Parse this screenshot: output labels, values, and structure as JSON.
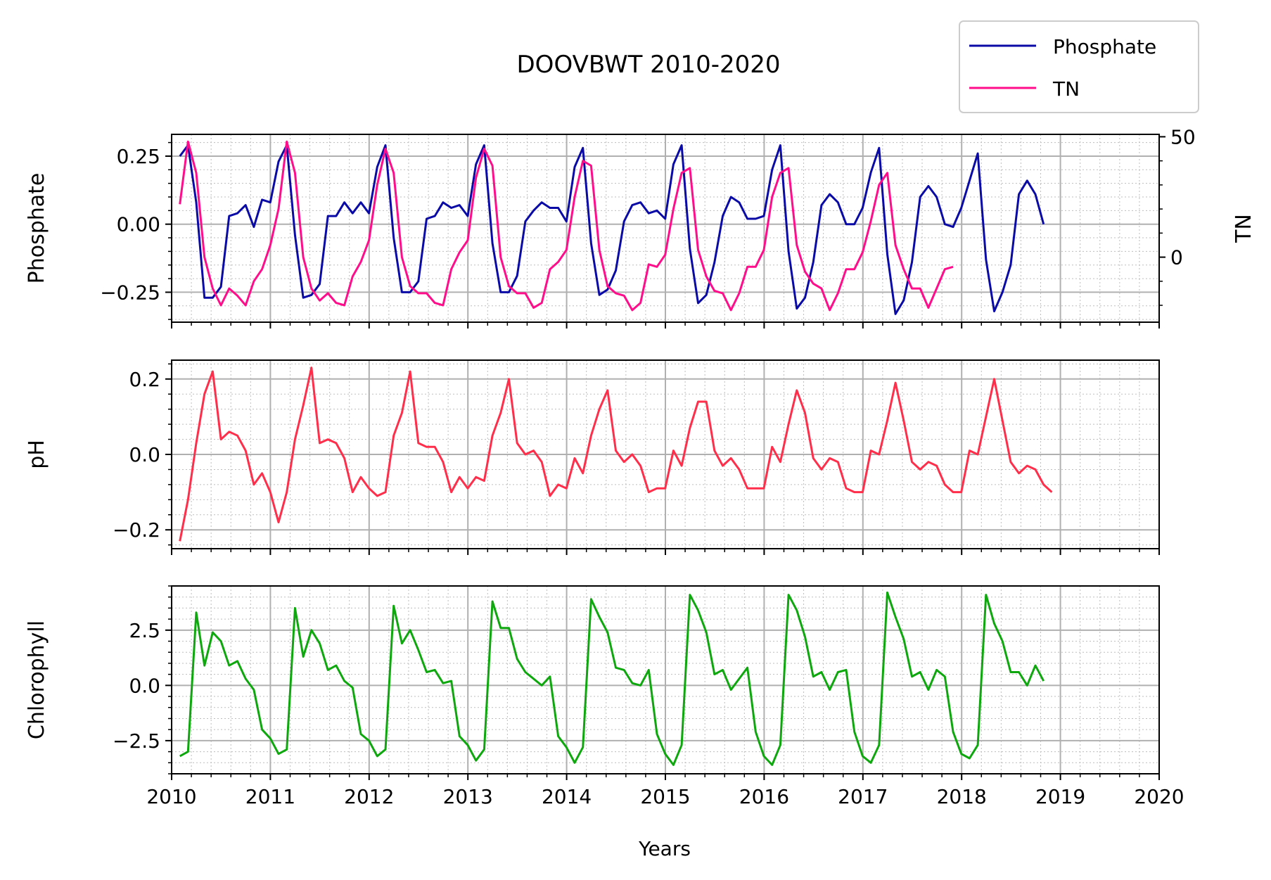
{
  "chart_data": {
    "title": "DOOVBWT 2010-2020",
    "type": "line",
    "xlabel": "Years",
    "xlim": [
      2010,
      2020
    ],
    "x_ticks": [
      "2010",
      "2011",
      "2012",
      "2013",
      "2014",
      "2015",
      "2016",
      "2017",
      "2018",
      "2019",
      "2020"
    ],
    "grid": true,
    "legend": {
      "placement": "top-right",
      "entries": [
        "Phosphate",
        "TN"
      ]
    },
    "panels": [
      {
        "ylabel": "Phosphate",
        "ylim": [
          -0.36,
          0.33
        ],
        "y_ticks": [
          -0.25,
          0,
          0.25
        ],
        "y_tick_labels": [
          "−0.25",
          "0.00",
          "0.25"
        ],
        "series": [
          {
            "name": "Phosphate",
            "color": "#0a0aa6",
            "x_start": 2010.083,
            "x_step": 0.0833,
            "values": [
              0.25,
              0.29,
              0.08,
              -0.27,
              -0.27,
              -0.23,
              0.03,
              0.04,
              0.07,
              -0.01,
              0.09,
              0.08,
              0.23,
              0.29,
              -0.04,
              -0.27,
              -0.26,
              -0.22,
              0.03,
              0.03,
              0.08,
              0.04,
              0.08,
              0.04,
              0.21,
              0.29,
              -0.05,
              -0.25,
              -0.25,
              -0.21,
              0.02,
              0.03,
              0.08,
              0.06,
              0.07,
              0.03,
              0.22,
              0.29,
              -0.07,
              -0.25,
              -0.25,
              -0.19,
              0.01,
              0.05,
              0.08,
              0.06,
              0.06,
              0.01,
              0.21,
              0.28,
              -0.07,
              -0.26,
              -0.24,
              -0.17,
              0.01,
              0.07,
              0.08,
              0.04,
              0.05,
              0.02,
              0.22,
              0.29,
              -0.09,
              -0.29,
              -0.26,
              -0.14,
              0.03,
              0.1,
              0.08,
              0.02,
              0.02,
              0.03,
              0.2,
              0.29,
              -0.1,
              -0.31,
              -0.27,
              -0.14,
              0.07,
              0.11,
              0.08,
              0.0,
              0.0,
              0.06,
              0.19,
              0.28,
              -0.11,
              -0.33,
              -0.28,
              -0.14,
              0.1,
              0.14,
              0.1,
              0.0,
              -0.01,
              0.06,
              0.16,
              0.26,
              -0.13,
              -0.32,
              -0.25,
              -0.15,
              0.11,
              0.16,
              0.11,
              0.0
            ]
          },
          {
            "name": "TN",
            "color": "#ff0d8a",
            "axis": "right",
            "x_start": 2010.083,
            "x_step": 0.0833,
            "values": [
              22,
              48,
              35,
              0,
              -13,
              -20,
              -13,
              -16,
              -20,
              -10,
              -5,
              5,
              20,
              48,
              35,
              0,
              -13,
              -18,
              -15,
              -19,
              -20,
              -8,
              -2,
              7,
              30,
              45,
              35,
              0,
              -12,
              -15,
              -15,
              -19,
              -20,
              -5,
              2,
              7,
              33,
              45,
              38,
              0,
              -12,
              -15,
              -15,
              -21,
              -19,
              -5,
              -2,
              3,
              25,
              40,
              38,
              3,
              -12,
              -15,
              -16,
              -22,
              -19,
              -3,
              -4,
              1,
              20,
              35,
              37,
              3,
              -8,
              -14,
              -15,
              -22,
              -15,
              -4,
              -4,
              3,
              25,
              35,
              37,
              5,
              -6,
              -11,
              -13,
              -22,
              -15,
              -5,
              -5,
              2,
              15,
              30,
              35,
              5,
              -5,
              -13,
              -13,
              -21,
              -13,
              -5,
              -4
            ]
          }
        ],
        "right_axis": {
          "label": "TN",
          "ylim": [
            -27,
            51
          ],
          "y_ticks": [
            0,
            50
          ],
          "y_tick_labels": [
            "0",
            "50"
          ]
        }
      },
      {
        "ylabel": "pH",
        "ylim": [
          -0.25,
          0.25
        ],
        "y_ticks": [
          -0.2,
          0,
          0.2
        ],
        "y_tick_labels": [
          "−0.2",
          "0.0",
          "0.2"
        ],
        "series": [
          {
            "name": "pH",
            "color": "#ff2e4a",
            "x_start": 2010.083,
            "x_step": 0.0833,
            "values": [
              -0.23,
              -0.12,
              0.03,
              0.16,
              0.22,
              0.04,
              0.06,
              0.05,
              0.01,
              -0.08,
              -0.05,
              -0.1,
              -0.18,
              -0.1,
              0.04,
              0.13,
              0.23,
              0.03,
              0.04,
              0.03,
              -0.01,
              -0.1,
              -0.06,
              -0.09,
              -0.11,
              -0.1,
              0.05,
              0.11,
              0.22,
              0.03,
              0.02,
              0.02,
              -0.02,
              -0.1,
              -0.06,
              -0.09,
              -0.06,
              -0.07,
              0.05,
              0.11,
              0.2,
              0.03,
              0.0,
              0.01,
              -0.02,
              -0.11,
              -0.08,
              -0.09,
              -0.01,
              -0.05,
              0.05,
              0.12,
              0.17,
              0.01,
              -0.02,
              0.0,
              -0.03,
              -0.1,
              -0.09,
              -0.09,
              0.01,
              -0.03,
              0.07,
              0.14,
              0.14,
              0.01,
              -0.03,
              -0.01,
              -0.04,
              -0.09,
              -0.09,
              -0.09,
              0.02,
              -0.02,
              0.08,
              0.17,
              0.11,
              -0.01,
              -0.04,
              -0.01,
              -0.02,
              -0.09,
              -0.1,
              -0.1,
              0.01,
              0.0,
              0.09,
              0.19,
              0.09,
              -0.02,
              -0.04,
              -0.02,
              -0.03,
              -0.08,
              -0.1,
              -0.1,
              0.01,
              0.0,
              0.1,
              0.2,
              0.09,
              -0.02,
              -0.05,
              -0.03,
              -0.04,
              -0.08,
              -0.1
            ]
          }
        ]
      },
      {
        "ylabel": "Chlorophyll",
        "ylim": [
          -4.0,
          4.5
        ],
        "y_ticks": [
          -2.5,
          0,
          2.5
        ],
        "y_tick_labels": [
          "−2.5",
          "0.0",
          "2.5"
        ],
        "series": [
          {
            "name": "Chlorophyll",
            "color": "#0ea80e",
            "x_start": 2010.083,
            "x_step": 0.0833,
            "values": [
              -3.2,
              -3.0,
              3.3,
              0.9,
              2.4,
              2.0,
              0.9,
              1.1,
              0.3,
              -0.2,
              -2.0,
              -2.4,
              -3.1,
              -2.9,
              3.5,
              1.3,
              2.5,
              1.9,
              0.7,
              0.9,
              0.2,
              -0.1,
              -2.2,
              -2.5,
              -3.2,
              -2.9,
              3.6,
              1.9,
              2.5,
              1.6,
              0.6,
              0.7,
              0.1,
              0.2,
              -2.3,
              -2.7,
              -3.4,
              -2.9,
              3.8,
              2.6,
              2.6,
              1.2,
              0.6,
              0.3,
              0.0,
              0.4,
              -2.3,
              -2.8,
              -3.5,
              -2.8,
              3.9,
              3.1,
              2.4,
              0.8,
              0.7,
              0.1,
              0.0,
              0.7,
              -2.2,
              -3.1,
              -3.6,
              -2.7,
              4.1,
              3.4,
              2.4,
              0.5,
              0.7,
              -0.2,
              0.3,
              0.8,
              -2.1,
              -3.2,
              -3.6,
              -2.7,
              4.1,
              3.4,
              2.2,
              0.4,
              0.6,
              -0.2,
              0.6,
              0.7,
              -2.1,
              -3.2,
              -3.5,
              -2.7,
              4.2,
              3.1,
              2.1,
              0.4,
              0.6,
              -0.2,
              0.7,
              0.4,
              -2.1,
              -3.1,
              -3.3,
              -2.7,
              4.1,
              2.8,
              2.0,
              0.6,
              0.6,
              0.0,
              0.9,
              0.2
            ]
          }
        ]
      }
    ]
  }
}
